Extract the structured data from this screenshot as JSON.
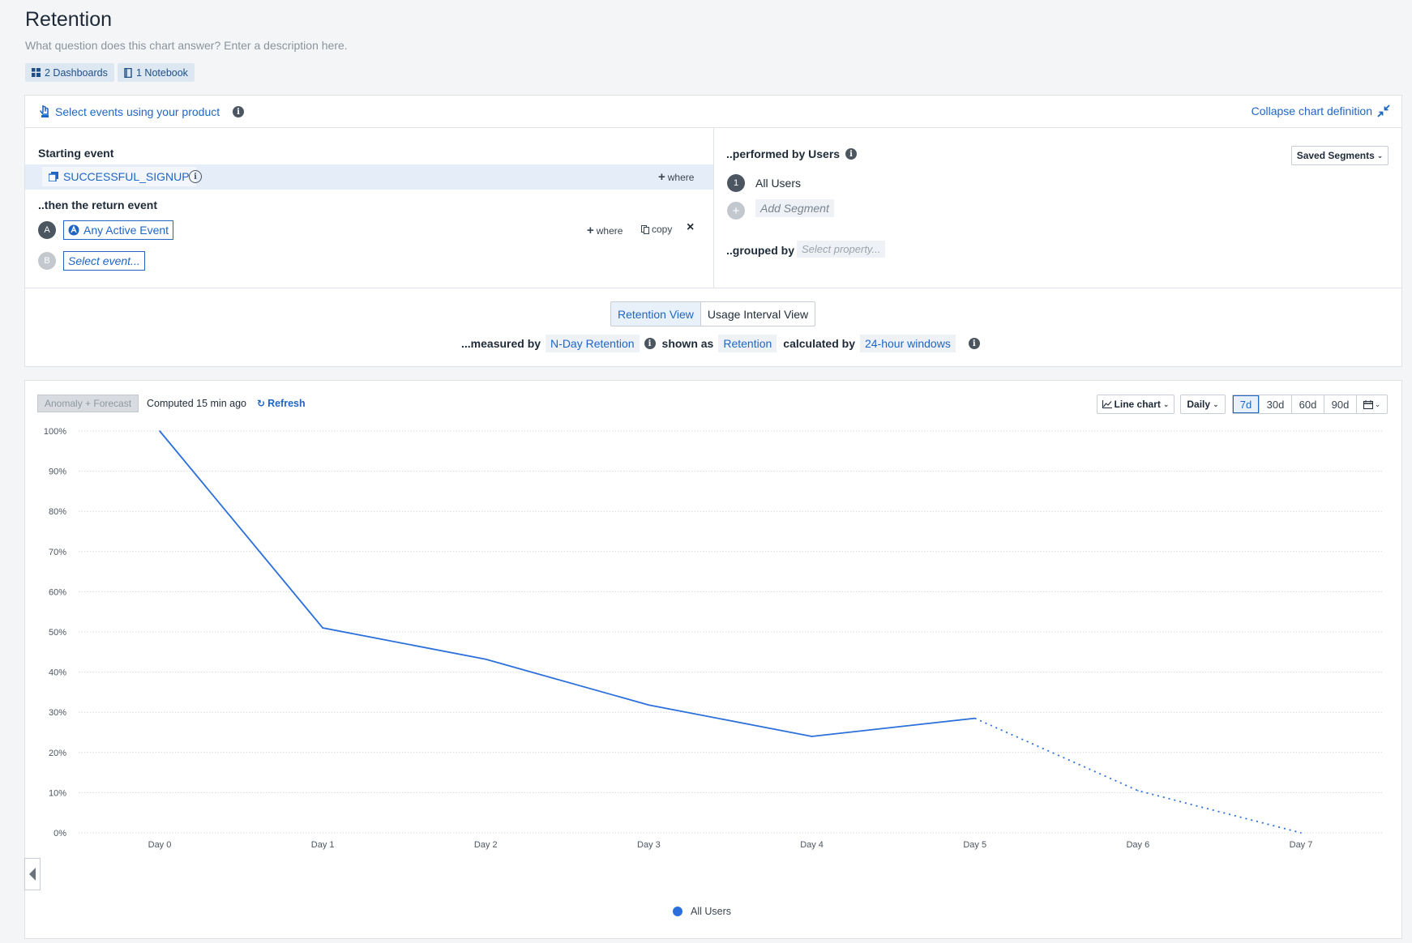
{
  "header": {
    "title": "Retention",
    "description_placeholder": "What question does this chart answer? Enter a description here.",
    "dashboards_label": "2 Dashboards",
    "notebook_label": "1 Notebook"
  },
  "definition": {
    "select_events_label": "Select events using your product",
    "collapse_label": "Collapse chart definition",
    "starting_event_heading": "Starting event",
    "starting_event_name": "SUCCESSFUL_SIGNUP",
    "where_label": "where",
    "return_event_heading": "..then the return event",
    "return_events": [
      {
        "letter": "A",
        "name": "Any Active Event"
      },
      {
        "letter": "B",
        "name": "Select event..."
      }
    ],
    "copy_label": "copy",
    "performed_by_heading": "..performed by Users",
    "saved_segments_label": "Saved Segments",
    "segments": [
      {
        "index": "1",
        "name": "All Users"
      }
    ],
    "add_segment_label": "Add Segment",
    "grouped_by_label": "..grouped by",
    "grouped_by_placeholder": "Select property..."
  },
  "views": {
    "retention_view": "Retention View",
    "usage_interval_view": "Usage Interval View",
    "measured_by_label": "...measured by",
    "measured_by_value": "N-Day Retention",
    "shown_as_label": "shown as",
    "shown_as_value": "Retention",
    "calculated_by_label": "calculated by",
    "calculated_by_value": "24-hour windows"
  },
  "toolbar": {
    "anomaly_label": "Anomaly + Forecast",
    "computed_label": "Computed 15 min ago",
    "refresh_label": "Refresh",
    "chart_type_label": "Line chart",
    "interval_label": "Daily",
    "ranges": [
      "7d",
      "30d",
      "60d",
      "90d"
    ],
    "active_range": "7d"
  },
  "chart_data": {
    "type": "line",
    "categories": [
      "Day 0",
      "Day 1",
      "Day 2",
      "Day 3",
      "Day 4",
      "Day 5",
      "Day 6",
      "Day 7"
    ],
    "series": [
      {
        "name": "All Users",
        "values": [
          100,
          51,
          43.2,
          31.8,
          24,
          28.5,
          10.5,
          0
        ],
        "incomplete_from_index": 5,
        "color": "#2a6fdb"
      }
    ],
    "y_ticks": [
      "0%",
      "10%",
      "20%",
      "30%",
      "40%",
      "50%",
      "60%",
      "70%",
      "80%",
      "90%",
      "100%"
    ],
    "ylim": [
      0,
      100
    ],
    "grid": true,
    "legend_position": "bottom-center"
  },
  "colors": {
    "accent": "#1f66c4",
    "series": "#2a6fdb"
  }
}
